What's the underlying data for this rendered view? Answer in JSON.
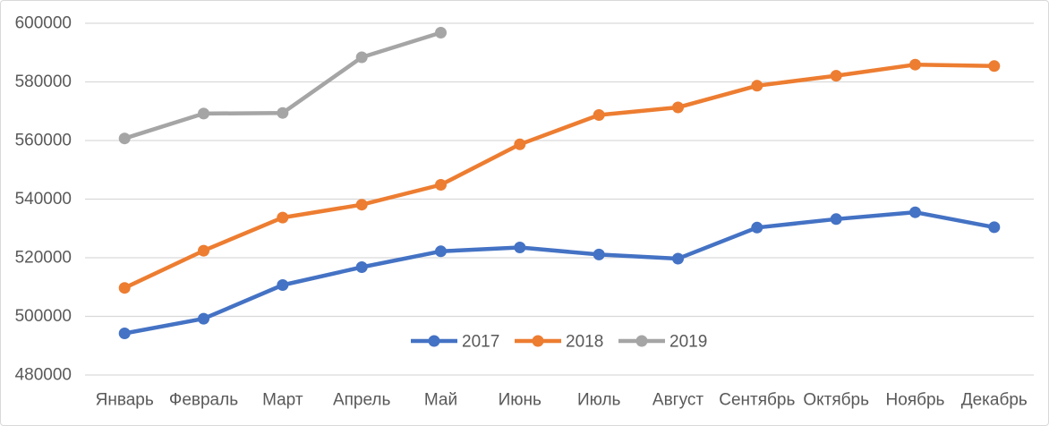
{
  "chart": {
    "background": "#FFFFFF",
    "border_color": "#D9D9D9",
    "grid_color": "#D9D9D9",
    "axis_text_color": "#595959",
    "legend_text_color": "#595959"
  },
  "chart_data": {
    "type": "line",
    "title": "",
    "categories": [
      "Январь",
      "Февраль",
      "Март",
      "Апрель",
      "Май",
      "Июнь",
      "Июль",
      "Август",
      "Сентябрь",
      "Октябрь",
      "Ноябрь",
      "Декабрь"
    ],
    "series": [
      {
        "name": "2017",
        "color": "#4472C4",
        "values": [
          494200,
          499200,
          510700,
          516800,
          522200,
          523500,
          521100,
          519700,
          530300,
          533200,
          535500,
          530400
        ]
      },
      {
        "name": "2018",
        "color": "#ED7D31",
        "values": [
          509700,
          522400,
          533700,
          538100,
          544900,
          558700,
          568700,
          571300,
          578700,
          582100,
          585900,
          585400
        ]
      },
      {
        "name": "2019",
        "color": "#A5A5A5",
        "values": [
          560700,
          569200,
          569400,
          588400,
          596800
        ]
      }
    ],
    "ylim": [
      480000,
      600000
    ],
    "ytick_step": 20000,
    "yticks": [
      "480000",
      "500000",
      "520000",
      "540000",
      "560000",
      "580000",
      "600000"
    ],
    "xlabel": "",
    "ylabel": "",
    "grid": true,
    "legend_position": "bottom-center",
    "legend": [
      "2017",
      "2018",
      "2019"
    ]
  }
}
